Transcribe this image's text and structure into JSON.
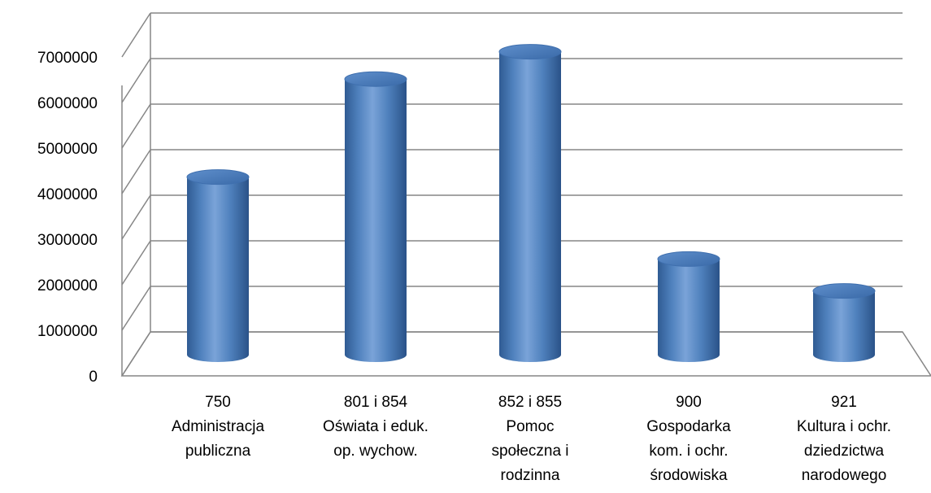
{
  "chart_data": {
    "type": "bar",
    "style": "3d-cylinder",
    "categories": [
      [
        "750",
        "Administracja",
        "publiczna"
      ],
      [
        "801 i 854",
        "Oświata i eduk.",
        "op. wychow."
      ],
      [
        "852 i 855",
        "Pomoc",
        "społeczna i",
        "rodzinna"
      ],
      [
        "900",
        "Gospodarka",
        "kom. i ochr.",
        "środowiska"
      ],
      [
        "921",
        "Kultura i ochr.",
        "dziedzictwa",
        "narodowego"
      ]
    ],
    "values": [
      3900000,
      6050000,
      6650000,
      2100000,
      1400000
    ],
    "ylim": [
      0,
      7000000
    ],
    "yticks": [
      "0",
      "1000000",
      "2000000",
      "3000000",
      "4000000",
      "5000000",
      "6000000",
      "7000000"
    ],
    "grid": true,
    "legend": "none",
    "colors": {
      "bar": "#4f81bd",
      "bar_dark": "#2f5b93",
      "bar_light": "#8eb4e3",
      "grid": "#868686"
    }
  }
}
